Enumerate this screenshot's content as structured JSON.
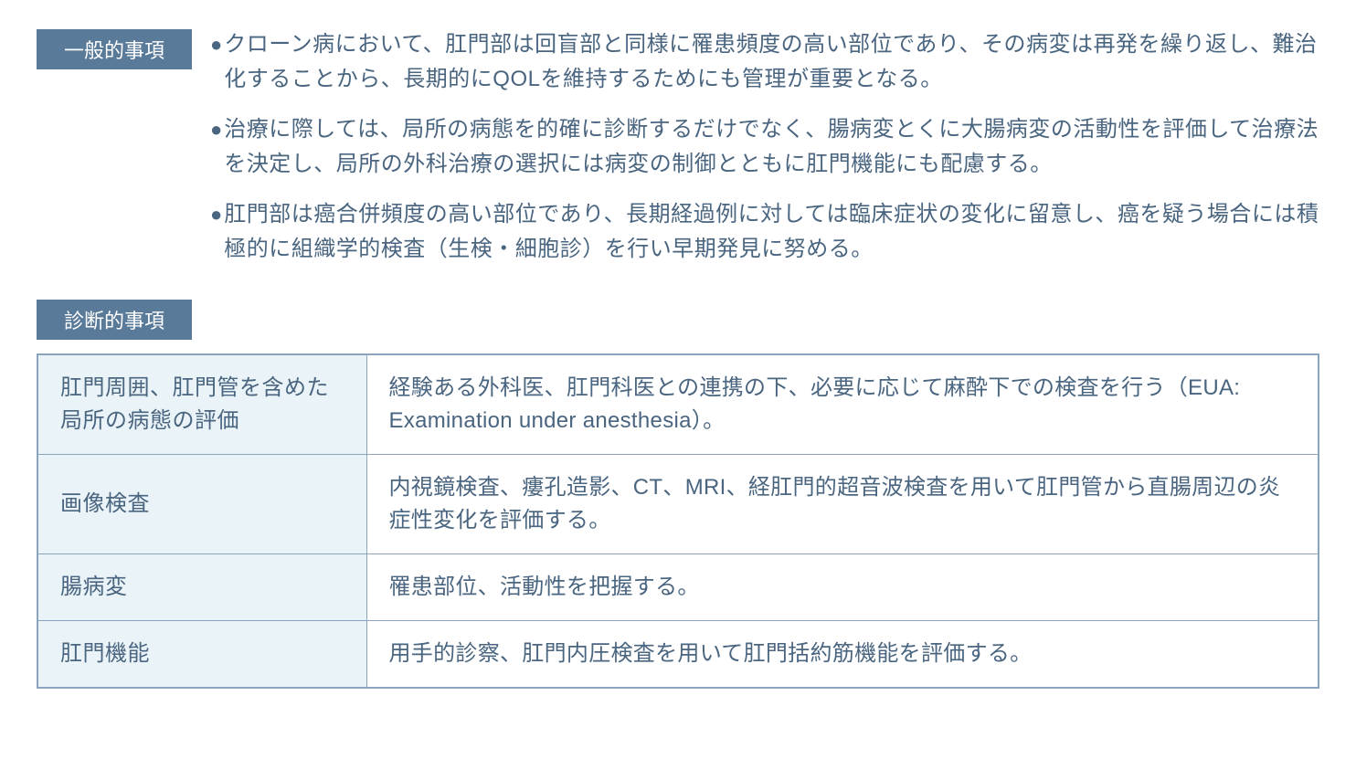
{
  "colors": {
    "label_bg": "#5a7a99",
    "label_fg": "#ffffff",
    "text": "#4a6580",
    "table_border": "#8aa5bd",
    "table_left_bg": "#eaf3f7",
    "table_right_bg": "#ffffff"
  },
  "general": {
    "label": "一般的事項",
    "bullets": [
      "クローン病において、肛門部は回盲部と同様に罹患頻度の高い部位であり、その病変は再発を繰り返し、難治化することから、長期的にQOLを維持するためにも管理が重要となる。",
      "治療に際しては、局所の病態を的確に診断するだけでなく、腸病変とくに大腸病変の活動性を評価して治療法を決定し、局所の外科治療の選択には病変の制御とともに肛門機能にも配慮する。",
      "肛門部は癌合併頻度の高い部位であり、長期経過例に対しては臨床症状の変化に留意し、癌を疑う場合には積極的に組織学的検査（生検・細胞診）を行い早期発見に努める。"
    ]
  },
  "diagnostic": {
    "label": "診断的事項",
    "rows": [
      {
        "left": "肛門周囲、肛門管を含めた局所の病態の評価",
        "right": "経験ある外科医、肛門科医との連携の下、必要に応じて麻酔下での検査を行う（EUA: Examination under anesthesia）。"
      },
      {
        "left": "画像検査",
        "right": "内視鏡検査、瘻孔造影、CT、MRI、経肛門的超音波検査を用いて肛門管から直腸周辺の炎症性変化を評価する。"
      },
      {
        "left": "腸病変",
        "right": "罹患部位、活動性を把握する。"
      },
      {
        "left": "肛門機能",
        "right": "用手的診察、肛門内圧検査を用いて肛門括約筋機能を評価する。"
      }
    ]
  }
}
